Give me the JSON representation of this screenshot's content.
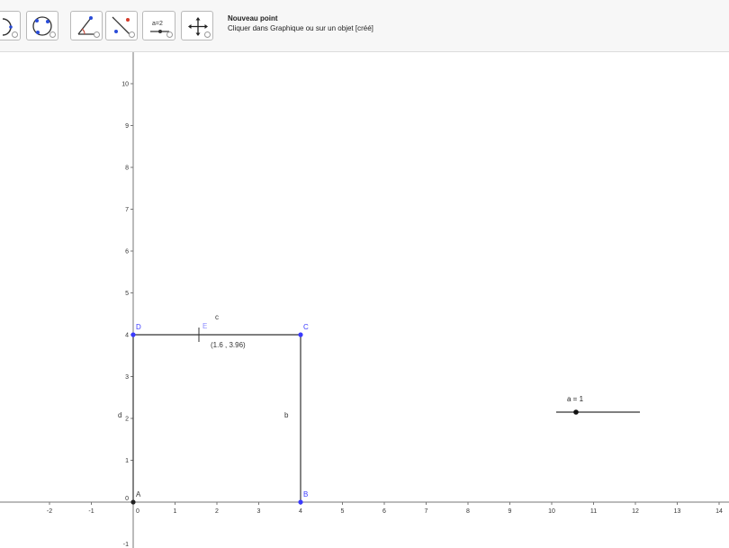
{
  "toolbar": {
    "tools": [
      {
        "name": "circle-tool-partial",
        "icon": "circle-arc-icon"
      },
      {
        "name": "circle-through-points-tool",
        "icon": "circle-points-icon"
      },
      {
        "name": "angle-tool",
        "icon": "angle-icon"
      },
      {
        "name": "reflect-tool",
        "icon": "reflect-icon"
      },
      {
        "name": "slider-tool",
        "icon": "slider-icon",
        "label": "a=2"
      },
      {
        "name": "move-graphics-tool",
        "icon": "move-icon"
      }
    ],
    "help_title": "Nouveau point",
    "help_text": "Cliquer dans Graphique ou sur un objet [créé]"
  },
  "graphics": {
    "x_ticks": [
      "-2",
      "-1",
      "0",
      "1",
      "2",
      "3",
      "4",
      "5",
      "6",
      "7",
      "8",
      "9",
      "10",
      "11",
      "12",
      "13",
      "14"
    ],
    "y_ticks": [
      "1",
      "2",
      "3",
      "4",
      "5",
      "6",
      "7",
      "8",
      "9",
      "10"
    ],
    "bottom_tick": "-1",
    "points": {
      "A": "A",
      "B": "B",
      "C": "C",
      "D": "D",
      "E": "E"
    },
    "segments": {
      "b": "b",
      "c": "c",
      "d": "d"
    },
    "cursor_coords": "(1.6 , 3.96)",
    "slider_label": "a = 1",
    "slider_value": 1,
    "colors": {
      "point_blue": "#3a3aff",
      "point_black": "#222222",
      "segment": "#333333",
      "axis": "#777777"
    }
  }
}
